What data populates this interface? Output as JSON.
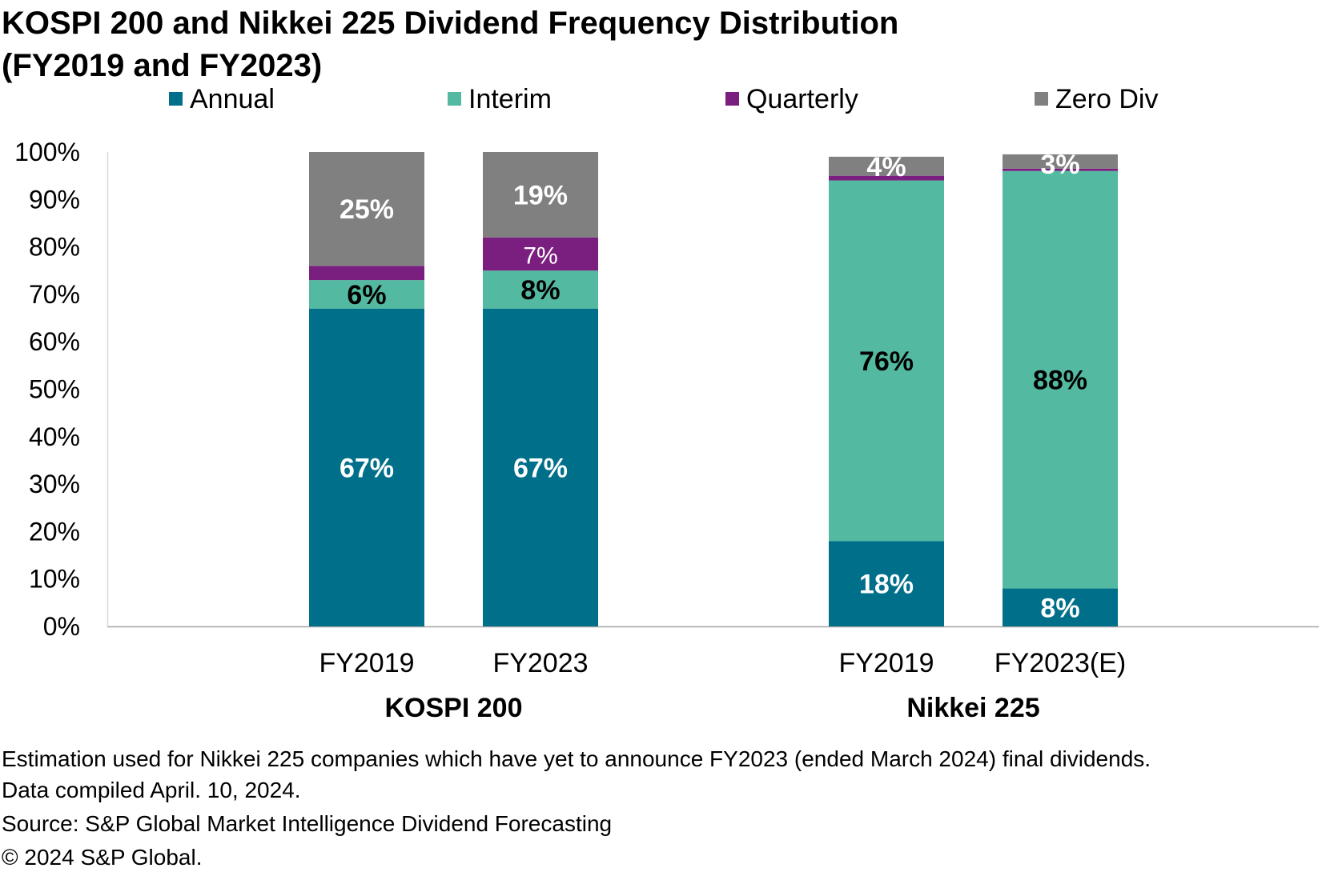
{
  "chart_data": {
    "type": "bar",
    "stacked": true,
    "title_line1": "KOSPI 200 and Nikkei 225 Dividend Frequency Distribution",
    "title_line2": "(FY2019 and FY2023)",
    "ylim": [
      0,
      100
    ],
    "y_ticks": [
      "0%",
      "10%",
      "20%",
      "30%",
      "40%",
      "50%",
      "60%",
      "70%",
      "80%",
      "90%",
      "100%"
    ],
    "legend_position": "top",
    "series": [
      {
        "name": "Annual",
        "color": "#006f8a",
        "label_color": "#ffffff"
      },
      {
        "name": "Interim",
        "color": "#53b9a0",
        "label_color": "#000000"
      },
      {
        "name": "Quarterly",
        "color": "#7a1f7f",
        "label_color": "#ffffff"
      },
      {
        "name": "Zero Div",
        "color": "#808080",
        "label_color": "#ffffff"
      }
    ],
    "groups": [
      {
        "name": "KOSPI 200",
        "bars": [
          {
            "category": "FY2019",
            "values": [
              67,
              6,
              3,
              25
            ],
            "labels": [
              "67%",
              "6%",
              "",
              "25%"
            ]
          },
          {
            "category": "FY2023",
            "values": [
              67,
              8,
              7,
              19
            ],
            "labels": [
              "67%",
              "8%",
              "7%",
              "19%"
            ]
          }
        ]
      },
      {
        "name": "Nikkei 225",
        "bars": [
          {
            "category": "FY2019",
            "values": [
              18,
              76,
              1,
              4
            ],
            "labels": [
              "18%",
              "76%",
              "",
              "4%"
            ]
          },
          {
            "category": "FY2023(E)",
            "values": [
              8,
              88,
              0.5,
              3
            ],
            "labels": [
              "8%",
              "88%",
              "",
              "3%"
            ]
          }
        ]
      }
    ]
  },
  "footnotes": [
    "Estimation used for Nikkei 225 companies which have yet to announce FY2023 (ended March 2024) final dividends.",
    "Data compiled April. 10, 2024.",
    "Source: S&P Global Market Intelligence Dividend Forecasting",
    "© 2024 S&P Global."
  ]
}
